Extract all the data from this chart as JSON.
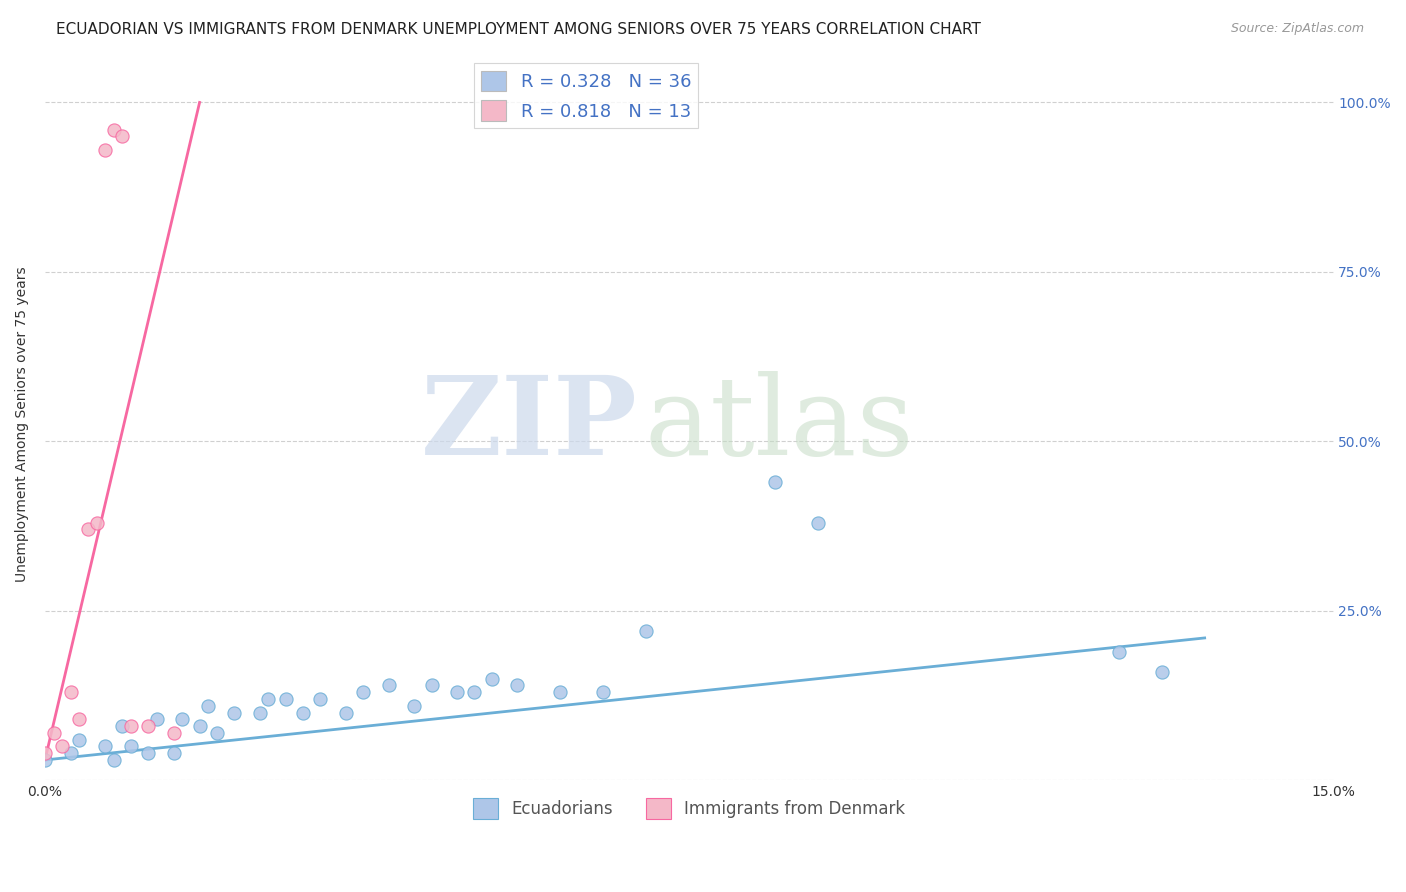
{
  "title": "ECUADORIAN VS IMMIGRANTS FROM DENMARK UNEMPLOYMENT AMONG SENIORS OVER 75 YEARS CORRELATION CHART",
  "source": "Source: ZipAtlas.com",
  "ylabel": "Unemployment Among Seniors over 75 years",
  "xlim": [
    0.0,
    0.15
  ],
  "ylim": [
    0.0,
    1.05
  ],
  "blue_scatter_x": [
    0.0,
    0.003,
    0.004,
    0.007,
    0.008,
    0.009,
    0.01,
    0.012,
    0.013,
    0.015,
    0.016,
    0.018,
    0.019,
    0.02,
    0.022,
    0.025,
    0.026,
    0.028,
    0.03,
    0.032,
    0.035,
    0.037,
    0.04,
    0.043,
    0.045,
    0.048,
    0.05,
    0.052,
    0.055,
    0.06,
    0.065,
    0.07,
    0.085,
    0.09,
    0.125,
    0.13
  ],
  "blue_scatter_y": [
    0.03,
    0.04,
    0.06,
    0.05,
    0.03,
    0.08,
    0.05,
    0.04,
    0.09,
    0.04,
    0.09,
    0.08,
    0.11,
    0.07,
    0.1,
    0.1,
    0.12,
    0.12,
    0.1,
    0.12,
    0.1,
    0.13,
    0.14,
    0.11,
    0.14,
    0.13,
    0.13,
    0.15,
    0.14,
    0.13,
    0.13,
    0.22,
    0.44,
    0.38,
    0.19,
    0.16
  ],
  "pink_scatter_x": [
    0.0,
    0.001,
    0.002,
    0.003,
    0.004,
    0.005,
    0.006,
    0.007,
    0.008,
    0.009,
    0.01,
    0.012,
    0.015
  ],
  "pink_scatter_y": [
    0.04,
    0.07,
    0.05,
    0.13,
    0.09,
    0.37,
    0.38,
    0.93,
    0.96,
    0.95,
    0.08,
    0.08,
    0.07
  ],
  "blue_line_x": [
    0.0,
    0.135
  ],
  "blue_line_y": [
    0.03,
    0.21
  ],
  "pink_line_x": [
    0.0,
    0.018
  ],
  "pink_line_y": [
    0.03,
    1.0
  ],
  "background_color": "#ffffff",
  "grid_color": "#d0d0d0",
  "blue_dot_color": "#6aaed6",
  "pink_dot_color": "#f768a1",
  "blue_fill": "#aec6e8",
  "pink_fill": "#f4b8c8",
  "title_fontsize": 11,
  "axis_label_fontsize": 10,
  "tick_fontsize": 10,
  "right_tick_color": "#4472c4"
}
